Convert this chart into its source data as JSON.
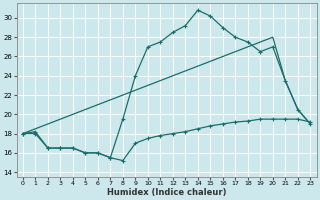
{
  "xlabel": "Humidex (Indice chaleur)",
  "xlim": [
    -0.5,
    23.5
  ],
  "ylim": [
    13.5,
    31.5
  ],
  "yticks": [
    14,
    16,
    18,
    20,
    22,
    24,
    26,
    28,
    30
  ],
  "xticks": [
    0,
    1,
    2,
    3,
    4,
    5,
    6,
    7,
    8,
    9,
    10,
    11,
    12,
    13,
    14,
    15,
    16,
    17,
    18,
    19,
    20,
    21,
    22,
    23
  ],
  "bg_color": "#cce8ec",
  "grid_color": "#b0d8dc",
  "line_color": "#1a6e6a",
  "line1_x": [
    0,
    1,
    2,
    3,
    4,
    5,
    6,
    7,
    8,
    9,
    10,
    11,
    12,
    13,
    14,
    15,
    16,
    17,
    18,
    19,
    20,
    21,
    22,
    23
  ],
  "line1_y": [
    18,
    18,
    16.5,
    16.5,
    16.5,
    16.0,
    16.0,
    15.5,
    19.5,
    24.0,
    27.0,
    27.5,
    28.5,
    29.2,
    30.8,
    30.2,
    29.0,
    28.0,
    27.5,
    26.5,
    27.0,
    23.5,
    20.5,
    19.0
  ],
  "line2_x": [
    0,
    1,
    2,
    3,
    4,
    5,
    6,
    7,
    8,
    9,
    10,
    11,
    12,
    13,
    14,
    15,
    16,
    17,
    18,
    19,
    20,
    21,
    22,
    23
  ],
  "line2_y": [
    18.0,
    18.5,
    19.0,
    19.5,
    20.0,
    20.5,
    21.0,
    21.5,
    22.0,
    22.5,
    23.0,
    23.5,
    24.0,
    24.5,
    25.0,
    25.5,
    26.0,
    26.5,
    27.0,
    27.5,
    28.0,
    23.5,
    20.5,
    19.0
  ],
  "line3_x": [
    0,
    1,
    2,
    3,
    4,
    5,
    6,
    7,
    8,
    9,
    10,
    11,
    12,
    13,
    14,
    15,
    16,
    17,
    18,
    19,
    20,
    21,
    22,
    23
  ],
  "line3_y": [
    18.0,
    18.2,
    16.5,
    16.5,
    16.5,
    16.0,
    16.0,
    15.5,
    15.2,
    17.0,
    17.5,
    17.8,
    18.0,
    18.2,
    18.5,
    18.8,
    19.0,
    19.2,
    19.3,
    19.5,
    19.5,
    19.5,
    19.5,
    19.2
  ]
}
